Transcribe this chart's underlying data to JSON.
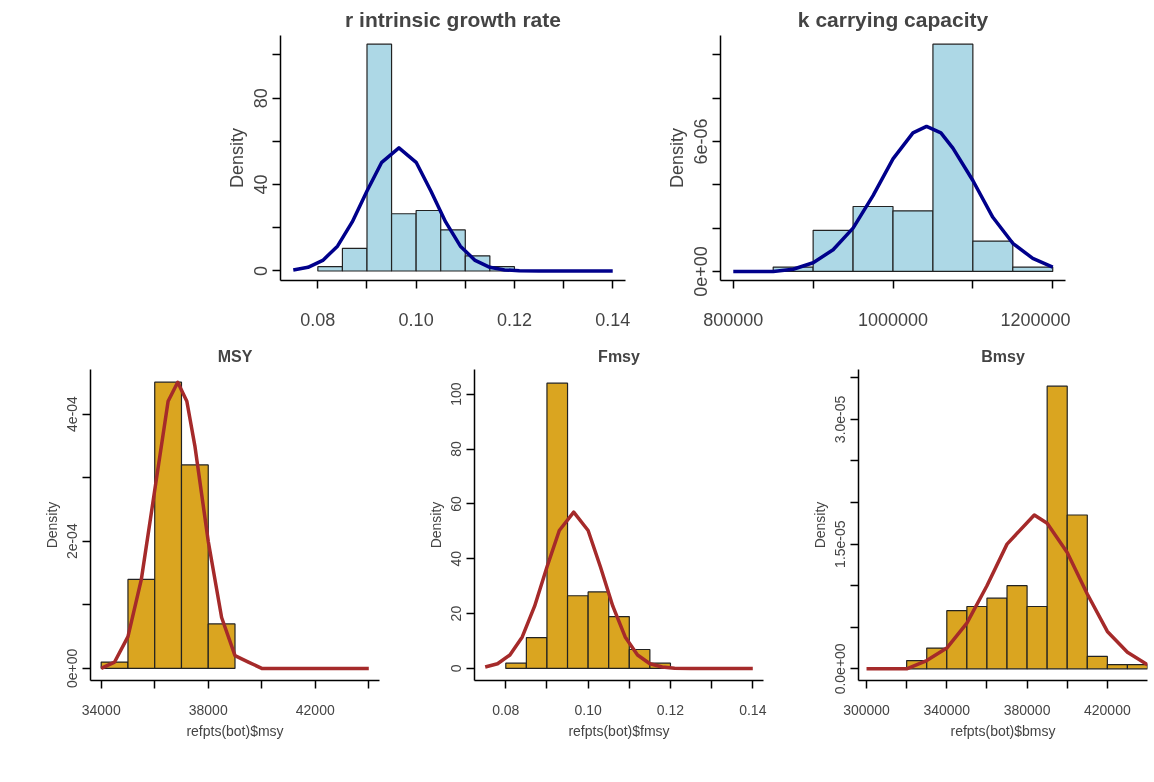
{
  "chart_data": [
    {
      "type": "histogram",
      "title": "r intrinsic growth rate",
      "ylabel": "Density",
      "grid": false,
      "xlim": [
        0.0724,
        0.1426
      ],
      "ylim": [
        -4.4,
        109
      ],
      "xticks": [
        0.08,
        {
          "value": 0.09,
          "label": null
        },
        {
          "value": 0.1,
          "label": "0.10"
        },
        {
          "value": 0.11,
          "label": null
        },
        0.12,
        {
          "value": 0.13,
          "label": null
        },
        0.14
      ],
      "yticks": [
        0,
        {
          "value": 20,
          "label": null
        },
        40,
        {
          "value": 60,
          "label": null
        },
        80,
        {
          "value": 100,
          "label": null
        }
      ],
      "series": [
        {
          "type": "histogram",
          "color": "#add8e6",
          "bins": [
            0.08,
            0.085,
            0.09,
            0.095,
            0.1,
            0.105,
            0.11,
            0.115,
            0.12
          ],
          "values": [
            2,
            10.5,
            105,
            26.5,
            28,
            19,
            7,
            2
          ]
        },
        {
          "type": "line",
          "color": "#00008b",
          "x": [
            0.075,
            0.078,
            0.081,
            0.084,
            0.087,
            0.09,
            0.093,
            0.0965,
            0.1,
            0.103,
            0.106,
            0.109,
            0.112,
            0.115,
            0.118,
            0.121,
            0.125,
            0.13,
            0.14
          ],
          "values": [
            0.5,
            1.7,
            4.9,
            11.5,
            22.7,
            37,
            50.3,
            57,
            50.3,
            37,
            22.7,
            11.5,
            4.9,
            1.7,
            0.5,
            0.1,
            0,
            0,
            0
          ]
        }
      ]
    },
    {
      "type": "histogram",
      "title": "k carrying capacity",
      "ylabel": "Density",
      "grid": false,
      "xlim": [
        784000,
        1216000
      ],
      "ylim": [
        -4.2e-07,
        1.09e-05
      ],
      "xticks": [
        800000,
        {
          "value": 900000,
          "label": null
        },
        1000000,
        {
          "value": 1100000,
          "label": null
        },
        1200000
      ],
      "yticks": [
        {
          "value": 0,
          "label": "0e+00"
        },
        {
          "value": 2e-06,
          "label": null
        },
        {
          "value": 4e-06,
          "label": null
        },
        {
          "value": 6e-06,
          "label": "6e-06"
        },
        {
          "value": 8e-06,
          "label": null
        },
        {
          "value": 1e-05,
          "label": null
        }
      ],
      "series": [
        {
          "type": "histogram",
          "color": "#add8e6",
          "bins": [
            850000,
            900000,
            950000,
            1000000,
            1050000,
            1100000,
            1150000,
            1200000
          ],
          "values": [
            2e-07,
            1.9e-06,
            3e-06,
            2.8e-06,
            1.05e-05,
            1.4e-06,
            2e-07
          ]
        },
        {
          "type": "line",
          "color": "#00008b",
          "x": [
            800000,
            825000,
            850000,
            875000,
            900000,
            925000,
            950000,
            975000,
            1000000,
            1025000,
            1042000,
            1060000,
            1075000,
            1100000,
            1125000,
            1150000,
            1175000,
            1200000
          ],
          "values": [
            0,
            0,
            0,
            1e-07,
            4e-07,
            1e-06,
            2e-06,
            3.5e-06,
            5.2e-06,
            6.4e-06,
            6.7e-06,
            6.4e-06,
            5.7e-06,
            4.2e-06,
            2.5e-06,
            1.3e-06,
            6e-07,
            2e-07
          ]
        }
      ]
    },
    {
      "type": "histogram",
      "title": "MSY",
      "xlabel": "refpts(bot)$msy",
      "ylabel": "Density",
      "grid": false,
      "xlim": [
        33600,
        44400
      ],
      "ylim": [
        -1.9e-05,
        0.00047
      ],
      "xticks": [
        34000,
        {
          "value": 36000,
          "label": null
        },
        38000,
        {
          "value": 40000,
          "label": null
        },
        42000,
        {
          "value": 44000,
          "label": null
        }
      ],
      "yticks": [
        {
          "value": 0,
          "label": "0e+00"
        },
        {
          "value": 0.0001,
          "label": null
        },
        {
          "value": 0.0002,
          "label": "2e-04"
        },
        {
          "value": 0.0003,
          "label": null
        },
        {
          "value": 0.0004,
          "label": "4e-04"
        }
      ],
      "series": [
        {
          "type": "histogram",
          "color": "#daa520",
          "bins": [
            34000,
            35000,
            36000,
            37000,
            38000,
            39000
          ],
          "values": [
            1e-05,
            0.00014,
            0.00045,
            0.00032,
            7e-05
          ]
        },
        {
          "type": "line",
          "color": "#a52a2a",
          "x": [
            34000,
            34500,
            35000,
            35500,
            36000,
            36500,
            36860,
            37200,
            37500,
            38000,
            38500,
            39000,
            39500,
            40000,
            41000,
            42000,
            43000,
            44000
          ],
          "values": [
            0,
            1e-05,
            5e-05,
            0.00014,
            0.00028,
            0.00042,
            0.00045,
            0.00042,
            0.00035,
            0.0002,
            8e-05,
            2e-05,
            1e-05,
            0,
            0,
            0,
            0,
            0
          ]
        }
      ]
    },
    {
      "type": "histogram",
      "title": "Fmsy",
      "xlabel": "refpts(bot)$fmsy",
      "ylabel": "Density",
      "grid": false,
      "xlim": [
        0.0724,
        0.1426
      ],
      "ylim": [
        -4.4,
        109
      ],
      "xticks": [
        0.08,
        {
          "value": 0.09,
          "label": null
        },
        {
          "value": 0.1,
          "label": "0.10"
        },
        {
          "value": 0.11,
          "label": null
        },
        0.12,
        {
          "value": 0.13,
          "label": null
        },
        0.14
      ],
      "yticks": [
        0,
        20,
        40,
        60,
        80,
        100
      ],
      "series": [
        {
          "type": "histogram",
          "color": "#daa520",
          "bins": [
            0.08,
            0.085,
            0.09,
            0.095,
            0.1,
            0.105,
            0.11,
            0.115,
            0.12
          ],
          "values": [
            1.9,
            11.2,
            104,
            26.5,
            27.9,
            18.9,
            6.9,
            1.9
          ]
        },
        {
          "type": "line",
          "color": "#a52a2a",
          "x": [
            0.075,
            0.078,
            0.081,
            0.084,
            0.087,
            0.09,
            0.093,
            0.0965,
            0.1,
            0.103,
            0.106,
            0.109,
            0.112,
            0.115,
            0.118,
            0.121,
            0.125,
            0.13,
            0.14
          ],
          "values": [
            0.5,
            1.7,
            4.9,
            11.5,
            22.7,
            37,
            50.3,
            57,
            50.3,
            37,
            22.7,
            11.5,
            4.9,
            1.7,
            0.5,
            0.1,
            0,
            0,
            0
          ]
        }
      ]
    },
    {
      "type": "histogram",
      "title": "Bmsy",
      "xlabel": "refpts(bot)$bmsy",
      "ylabel": "Density",
      "grid": false,
      "xlim": [
        296000,
        440000
      ],
      "ylim": [
        -1.4e-06,
        3.6e-05
      ],
      "xticks": [
        300000,
        {
          "value": 320000,
          "label": null
        },
        340000,
        {
          "value": 360000,
          "label": null
        },
        380000,
        {
          "value": 400000,
          "label": null
        },
        420000
      ],
      "yticks": [
        {
          "value": 0,
          "label": "0.0e+00"
        },
        {
          "value": 5e-06,
          "label": null
        },
        {
          "value": 1e-05,
          "label": null
        },
        {
          "value": 1.5e-05,
          "label": "1.5e-05"
        },
        {
          "value": 2e-05,
          "label": null
        },
        {
          "value": 2.5e-05,
          "label": null
        },
        {
          "value": 3e-05,
          "label": "3.0e-05"
        },
        {
          "value": 3.5e-05,
          "label": null
        }
      ],
      "series": [
        {
          "type": "histogram",
          "color": "#daa520",
          "bins": [
            320000,
            330000,
            340000,
            350000,
            360000,
            370000,
            380000,
            390000,
            400000,
            410000,
            420000,
            430000,
            440000
          ],
          "values": [
            1e-06,
            2.5e-06,
            7e-06,
            7.5e-06,
            8.5e-06,
            1e-05,
            7.5e-06,
            3.4e-05,
            1.85e-05,
            1.5e-06,
            5e-07,
            5e-07
          ]
        },
        {
          "type": "line",
          "color": "#a52a2a",
          "x": [
            300000,
            310000,
            320000,
            330000,
            340000,
            350000,
            360000,
            370000,
            383600,
            390000,
            400000,
            410000,
            420000,
            430000,
            440000
          ],
          "values": [
            0,
            0,
            0,
            1e-06,
            2.5e-06,
            5.5e-06,
            1e-05,
            1.5e-05,
            1.85e-05,
            1.75e-05,
            1.4e-05,
            9e-06,
            4.5e-06,
            2e-06,
            5e-07
          ]
        }
      ]
    }
  ]
}
